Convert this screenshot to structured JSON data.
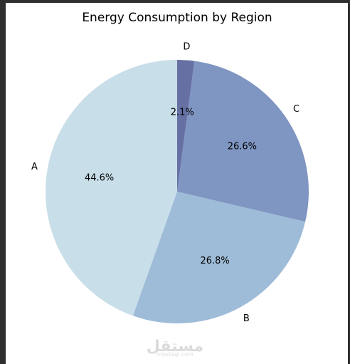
{
  "chart_data": {
    "type": "pie",
    "title": "Energy Consumption by Region",
    "categories": [
      "A",
      "B",
      "C",
      "D"
    ],
    "values": [
      44.6,
      26.8,
      26.6,
      2.1
    ],
    "value_labels": [
      "44.6%",
      "26.8%",
      "26.6%",
      "2.1%"
    ],
    "colors": [
      "#c8dee9",
      "#9ebcd8",
      "#7f95c2",
      "#6670a3"
    ],
    "start_angle_deg": 90,
    "direction": "counterclockwise",
    "legend": "none"
  },
  "watermark": {
    "text": "مستقل",
    "subtext": "mostaql.com"
  }
}
